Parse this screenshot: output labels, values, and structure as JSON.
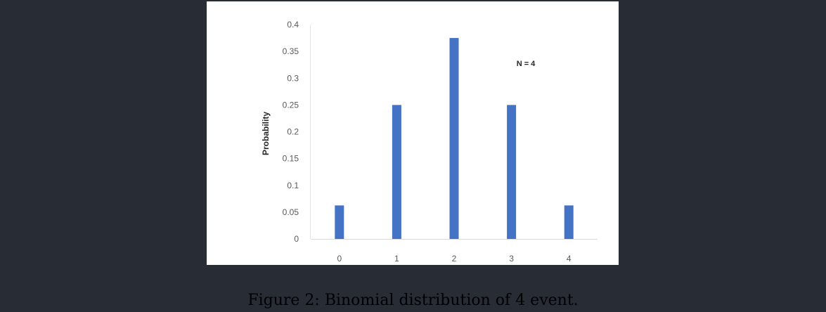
{
  "chart_data": {
    "type": "bar",
    "categories": [
      "0",
      "1",
      "2",
      "3",
      "4"
    ],
    "values": [
      0.0625,
      0.25,
      0.375,
      0.25,
      0.0625
    ],
    "ylabel": "Probability",
    "xlabel": "",
    "ylim": [
      0,
      0.4
    ],
    "yticks": [
      "0",
      "0.05",
      "0.1",
      "0.15",
      "0.2",
      "0.25",
      "0.3",
      "0.35",
      "0.4"
    ],
    "annotation": "N = 4",
    "bar_color": "#4472c4",
    "grid": false,
    "legend": "none"
  },
  "caption": "Figure 2: Binomial distribution of 4 event."
}
